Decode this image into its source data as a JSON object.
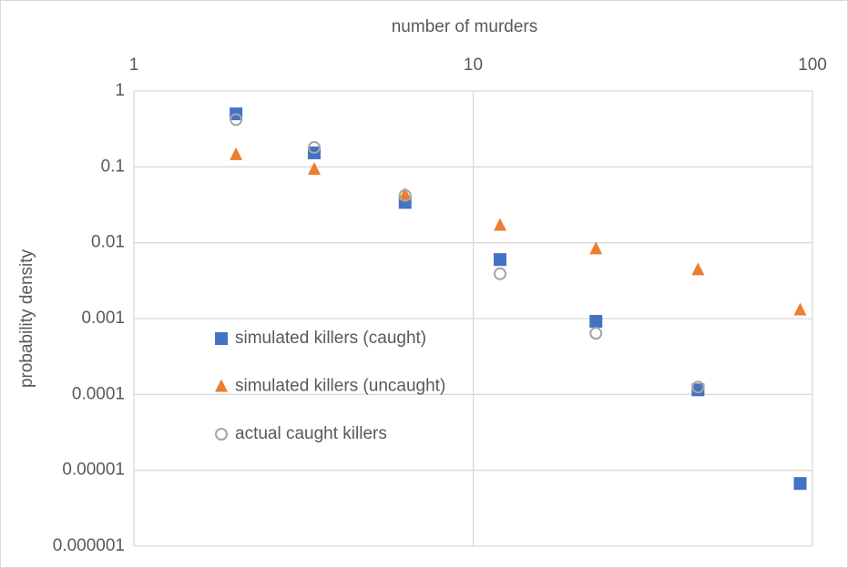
{
  "chart_data": {
    "type": "scatter",
    "xlabel": "number of murders",
    "ylabel": "probability density",
    "xscale": "log",
    "yscale": "log",
    "xaxis_position": "top",
    "xlim": [
      1,
      100
    ],
    "xticks": [
      1,
      10,
      100
    ],
    "ylim": [
      1e-06,
      1
    ],
    "yticks": [
      1,
      0.1,
      0.01,
      0.001,
      0.0001,
      1e-05,
      1e-06
    ],
    "grid": true,
    "legend": "left",
    "x": [
      2,
      3.4,
      6.3,
      12,
      23,
      46,
      92
    ],
    "series": [
      {
        "name": "simulated killers (caught)",
        "color": "#4472c4",
        "marker": "square",
        "values": [
          0.5,
          0.153,
          0.034,
          0.006,
          0.00092,
          0.000115,
          6.7e-06
        ]
      },
      {
        "name": "simulated killers (uncaught)",
        "color": "#ed7d31",
        "marker": "triangle",
        "values": [
          0.145,
          0.093,
          0.043,
          0.017,
          0.0083,
          0.0044,
          0.0013
        ]
      },
      {
        "name": "actual caught killers",
        "color": "#a5a5a5",
        "marker": "circle-hollow",
        "values": [
          0.42,
          0.18,
          0.042,
          0.0039,
          0.00064,
          0.000125,
          null
        ]
      }
    ]
  }
}
